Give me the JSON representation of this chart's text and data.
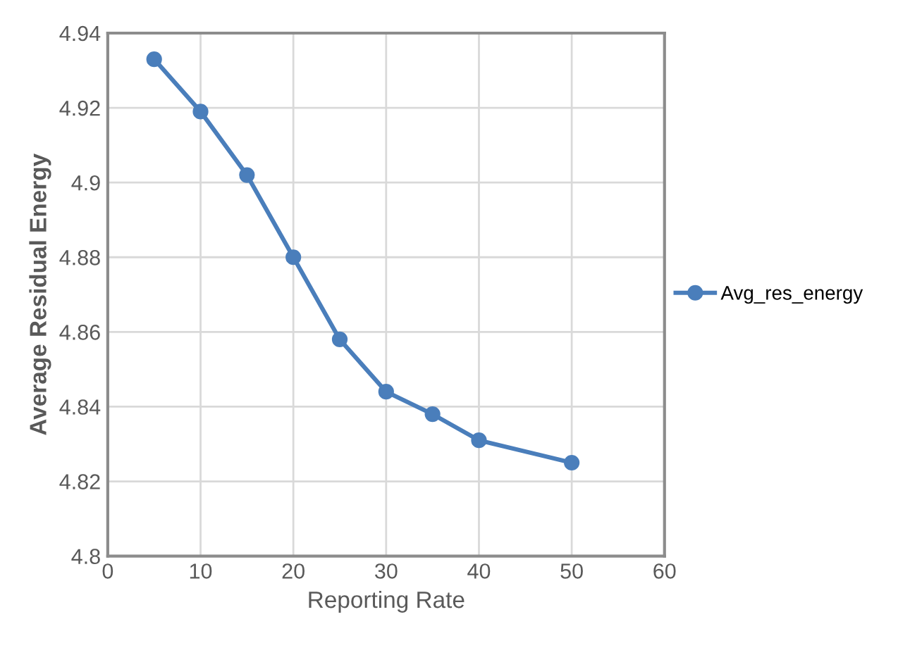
{
  "chart_data": {
    "type": "line",
    "xlabel": "Reporting Rate",
    "ylabel": "Average Residual Energy",
    "x": [
      5,
      10,
      15,
      20,
      25,
      30,
      35,
      40,
      50
    ],
    "series": [
      {
        "name": "Avg_res_energy",
        "color": "#4a7ebb",
        "values": [
          4.933,
          4.919,
          4.902,
          4.88,
          4.858,
          4.844,
          4.838,
          4.831,
          4.825
        ]
      }
    ],
    "xlim": [
      0,
      60
    ],
    "xticks": [
      0,
      10,
      20,
      30,
      40,
      50,
      60
    ],
    "ylim": [
      4.8,
      4.94
    ],
    "yticks": [
      4.8,
      4.82,
      4.84,
      4.86,
      4.88,
      4.9,
      4.92,
      4.94
    ],
    "grid": true,
    "legend": "right",
    "marker": "circle",
    "line_style": "solid"
  }
}
